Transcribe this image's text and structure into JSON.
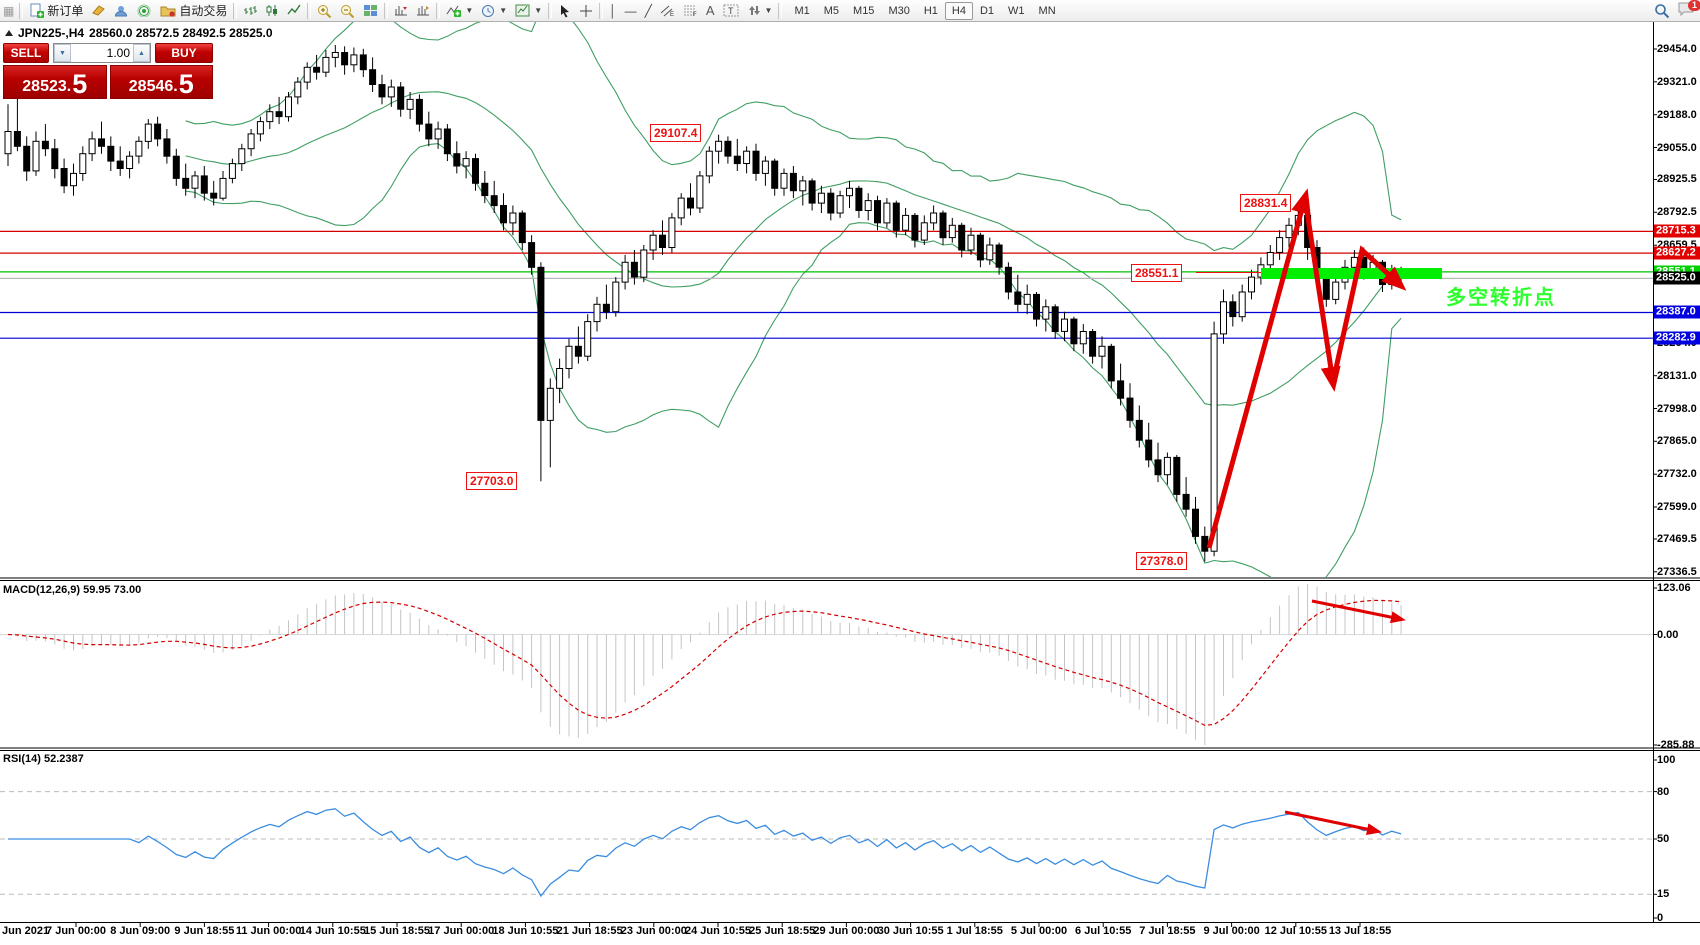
{
  "toolbar": {
    "new_order_label": "新订单",
    "autotrade_label": "自动交易",
    "timeframes": [
      "M1",
      "M5",
      "M15",
      "M30",
      "H1",
      "H4",
      "D1",
      "W1",
      "MN"
    ],
    "active_timeframe": "H4",
    "notification_count": "1"
  },
  "chart": {
    "symbol_tf": "JPN225-,H4",
    "ohlc_line": "28560.0 28572.5 28492.5 28525.0"
  },
  "trade_panel": {
    "sell_label": "SELL",
    "buy_label": "BUY",
    "volume": "1.00",
    "sell_price_main": "28523.",
    "sell_price_big": "5",
    "buy_price_main": "28546.",
    "buy_price_big": "5"
  },
  "indicators": {
    "macd_label": "MACD(12,26,9) 59.95 73.00",
    "rsi_label": "RSI(14) 52.2387"
  },
  "turning_point_text": "多空转折点",
  "chart_data": {
    "type": "candlestick",
    "symbol": "JPN225-",
    "timeframe": "H4",
    "last_ohlc": [
      28560.0,
      28572.5,
      28492.5,
      28525.0
    ],
    "y_axis_ticks": [
      29454.0,
      29321.0,
      29188.0,
      29055.0,
      28925.5,
      28792.5,
      28659.5,
      28264.0,
      28131.0,
      27998.0,
      27865.0,
      27732.0,
      27599.0,
      27469.5,
      27336.5
    ],
    "x_labels": [
      "Jun 2021",
      "7 Jun 00:00",
      "8 Jun 09:00",
      "9 Jun 18:55",
      "11 Jun 00:00",
      "14 Jun 10:55",
      "15 Jun 18:55",
      "17 Jun 00:00",
      "18 Jun 10:55",
      "21 Jun 18:55",
      "23 Jun 00:00",
      "24 Jun 10:55",
      "25 Jun 18:55",
      "29 Jun 00:00",
      "30 Jun 10:55",
      "1 Jul 18:55",
      "5 Jul 00:00",
      "6 Jul 10:55",
      "7 Jul 18:55",
      "9 Jul 00:00",
      "12 Jul 10:55",
      "13 Jul 18:55"
    ],
    "levels": [
      {
        "price": 28715.3,
        "line_color": "#d40000",
        "badge_bg": "#e00000",
        "label": "28715.3"
      },
      {
        "price": 28627.2,
        "line_color": "#d40000",
        "badge_bg": "#e00000",
        "label": "28627.2"
      },
      {
        "price": 28551.1,
        "line_color": "#00c000",
        "badge_bg": "#00d200",
        "label": "28551.1"
      },
      {
        "price": 28525.0,
        "line_color": "#b8b8b8",
        "badge_bg": "#000000",
        "label": "28525.0"
      },
      {
        "price": 28387.0,
        "line_color": "#0000d8",
        "badge_bg": "#0000e0",
        "label": "28387.0"
      },
      {
        "price": 28282.9,
        "line_color": "#0000d8",
        "badge_bg": "#0000e0",
        "label": "28282.9"
      }
    ],
    "annotations": [
      {
        "id": "a29107",
        "text": "29107.4",
        "price": 29107.4
      },
      {
        "id": "a28831",
        "text": "28831.4",
        "price": 28831.4
      },
      {
        "id": "a28551",
        "text": "28551.1",
        "price": 28551.1
      },
      {
        "id": "a27703",
        "text": "27703.0",
        "price": 27703.0
      },
      {
        "id": "a27378",
        "text": "27378.0",
        "price": 27378.0
      }
    ],
    "bollinger": {
      "period": 20,
      "deviation": 2,
      "color": "#3f9e63"
    },
    "macd": {
      "fast": 12,
      "slow": 26,
      "signal": 9,
      "axis_ticks": [
        "123.06",
        "0.00",
        "-285.88"
      ],
      "hist_color": "#c4c4c4",
      "signal_color": "#d40000"
    },
    "rsi": {
      "period": 14,
      "axis_ticks": [
        100,
        80,
        50,
        15,
        0
      ],
      "dashed_levels": [
        80,
        50,
        15
      ],
      "color": "#3b8de0"
    },
    "highlight_bar": {
      "price": 28551.1,
      "color": "#00ef00"
    },
    "candles": [
      [
        29030,
        29230,
        28980,
        29120
      ],
      [
        29120,
        29260,
        29040,
        29060
      ],
      [
        29060,
        29100,
        28920,
        28960
      ],
      [
        28960,
        29120,
        28940,
        29080
      ],
      [
        29080,
        29150,
        29020,
        29050
      ],
      [
        29050,
        29090,
        28930,
        28970
      ],
      [
        28970,
        29010,
        28870,
        28900
      ],
      [
        28900,
        28990,
        28860,
        28950
      ],
      [
        28950,
        29060,
        28920,
        29030
      ],
      [
        29030,
        29120,
        29000,
        29090
      ],
      [
        29090,
        29160,
        29030,
        29060
      ],
      [
        29060,
        29100,
        28960,
        29000
      ],
      [
        29000,
        29060,
        28940,
        28970
      ],
      [
        28970,
        29040,
        28930,
        29020
      ],
      [
        29020,
        29100,
        28990,
        29080
      ],
      [
        29080,
        29170,
        29050,
        29150
      ],
      [
        29150,
        29180,
        29060,
        29090
      ],
      [
        29090,
        29130,
        28990,
        29020
      ],
      [
        29020,
        29050,
        28900,
        28930
      ],
      [
        28930,
        28990,
        28860,
        28890
      ],
      [
        28890,
        28960,
        28850,
        28940
      ],
      [
        28940,
        28980,
        28840,
        28870
      ],
      [
        28870,
        28920,
        28820,
        28850
      ],
      [
        28850,
        28960,
        28840,
        28930
      ],
      [
        28930,
        29010,
        28910,
        28990
      ],
      [
        28990,
        29070,
        28960,
        29050
      ],
      [
        29050,
        29130,
        29020,
        29110
      ],
      [
        29110,
        29180,
        29080,
        29160
      ],
      [
        29160,
        29230,
        29130,
        29200
      ],
      [
        29200,
        29260,
        29150,
        29180
      ],
      [
        29180,
        29280,
        29160,
        29260
      ],
      [
        29260,
        29340,
        29230,
        29320
      ],
      [
        29320,
        29400,
        29290,
        29380
      ],
      [
        29380,
        29430,
        29330,
        29360
      ],
      [
        29360,
        29450,
        29340,
        29420
      ],
      [
        29420,
        29470,
        29380,
        29440
      ],
      [
        29440,
        29465,
        29350,
        29390
      ],
      [
        29390,
        29460,
        29360,
        29430
      ],
      [
        29430,
        29455,
        29340,
        29370
      ],
      [
        29370,
        29420,
        29280,
        29310
      ],
      [
        29310,
        29350,
        29230,
        29260
      ],
      [
        29260,
        29330,
        29220,
        29300
      ],
      [
        29300,
        29320,
        29180,
        29210
      ],
      [
        29210,
        29280,
        29170,
        29250
      ],
      [
        29250,
        29270,
        29120,
        29150
      ],
      [
        29150,
        29200,
        29060,
        29090
      ],
      [
        29090,
        29160,
        29050,
        29130
      ],
      [
        29130,
        29150,
        29000,
        29030
      ],
      [
        29030,
        29080,
        28950,
        28980
      ],
      [
        28980,
        29040,
        28930,
        29010
      ],
      [
        29010,
        29030,
        28880,
        28910
      ],
      [
        28910,
        28960,
        28830,
        28860
      ],
      [
        28860,
        28920,
        28790,
        28820
      ],
      [
        28820,
        28870,
        28720,
        28750
      ],
      [
        28750,
        28820,
        28700,
        28790
      ],
      [
        28790,
        28800,
        28640,
        28670
      ],
      [
        28670,
        28700,
        28540,
        28570
      ],
      [
        28570,
        28590,
        27703,
        27950
      ],
      [
        27950,
        28120,
        27760,
        28080
      ],
      [
        28080,
        28200,
        28020,
        28160
      ],
      [
        28160,
        28280,
        28120,
        28250
      ],
      [
        28250,
        28330,
        28180,
        28210
      ],
      [
        28210,
        28380,
        28190,
        28350
      ],
      [
        28350,
        28450,
        28310,
        28420
      ],
      [
        28420,
        28500,
        28360,
        28390
      ],
      [
        28390,
        28530,
        28370,
        28510
      ],
      [
        28510,
        28620,
        28480,
        28590
      ],
      [
        28590,
        28640,
        28500,
        28530
      ],
      [
        28530,
        28660,
        28510,
        28640
      ],
      [
        28640,
        28720,
        28600,
        28700
      ],
      [
        28700,
        28760,
        28620,
        28650
      ],
      [
        28650,
        28790,
        28630,
        28770
      ],
      [
        28770,
        28870,
        28740,
        28850
      ],
      [
        28850,
        28910,
        28780,
        28810
      ],
      [
        28810,
        28960,
        28790,
        28940
      ],
      [
        28940,
        29060,
        28910,
        29040
      ],
      [
        29040,
        29107.4,
        28990,
        29080
      ],
      [
        29080,
        29100,
        28990,
        29020
      ],
      [
        29020,
        29090,
        28960,
        28990
      ],
      [
        28990,
        29060,
        28950,
        29040
      ],
      [
        29040,
        29070,
        28920,
        28950
      ],
      [
        28950,
        29020,
        28900,
        29000
      ],
      [
        29000,
        29010,
        28860,
        28890
      ],
      [
        28890,
        28970,
        28860,
        28950
      ],
      [
        28950,
        28980,
        28850,
        28880
      ],
      [
        28880,
        28940,
        28820,
        28920
      ],
      [
        28920,
        28930,
        28800,
        28830
      ],
      [
        28830,
        28900,
        28790,
        28870
      ],
      [
        28870,
        28890,
        28760,
        28790
      ],
      [
        28790,
        28880,
        28770,
        28860
      ],
      [
        28860,
        28920,
        28810,
        28890
      ],
      [
        28890,
        28900,
        28770,
        28800
      ],
      [
        28800,
        28870,
        28760,
        28840
      ],
      [
        28840,
        28860,
        28720,
        28750
      ],
      [
        28750,
        28850,
        28730,
        28830
      ],
      [
        28830,
        28840,
        28690,
        28720
      ],
      [
        28720,
        28810,
        28700,
        28780
      ],
      [
        28780,
        28790,
        28650,
        28680
      ],
      [
        28680,
        28780,
        28660,
        28750
      ],
      [
        28750,
        28820,
        28720,
        28790
      ],
      [
        28790,
        28800,
        28660,
        28690
      ],
      [
        28690,
        28770,
        28670,
        28740
      ],
      [
        28740,
        28750,
        28610,
        28640
      ],
      [
        28640,
        28730,
        28620,
        28700
      ],
      [
        28700,
        28710,
        28570,
        28600
      ],
      [
        28600,
        28690,
        28580,
        28660
      ],
      [
        28660,
        28670,
        28540,
        28570
      ],
      [
        28570,
        28590,
        28440,
        28470
      ],
      [
        28470,
        28540,
        28390,
        28420
      ],
      [
        28420,
        28500,
        28380,
        28460
      ],
      [
        28460,
        28470,
        28330,
        28360
      ],
      [
        28360,
        28440,
        28310,
        28410
      ],
      [
        28410,
        28420,
        28280,
        28310
      ],
      [
        28310,
        28390,
        28270,
        28360
      ],
      [
        28360,
        28370,
        28230,
        28260
      ],
      [
        28260,
        28340,
        28220,
        28310
      ],
      [
        28310,
        28320,
        28180,
        28210
      ],
      [
        28210,
        28290,
        28160,
        28250
      ],
      [
        28250,
        28260,
        28080,
        28110
      ],
      [
        28110,
        28180,
        28010,
        28040
      ],
      [
        28040,
        28100,
        27920,
        27950
      ],
      [
        27950,
        28010,
        27840,
        27870
      ],
      [
        27870,
        27940,
        27760,
        27790
      ],
      [
        27790,
        27860,
        27700,
        27730
      ],
      [
        27730,
        27820,
        27690,
        27800
      ],
      [
        27800,
        27810,
        27620,
        27650
      ],
      [
        27650,
        27720,
        27560,
        27590
      ],
      [
        27590,
        27640,
        27450,
        27480
      ],
      [
        27480,
        27520,
        27378,
        27420
      ],
      [
        27420,
        28350,
        27400,
        28300
      ],
      [
        28300,
        28480,
        28260,
        28430
      ],
      [
        28430,
        28460,
        28330,
        28370
      ],
      [
        28370,
        28500,
        28350,
        28470
      ],
      [
        28470,
        28560,
        28440,
        28530
      ],
      [
        28530,
        28610,
        28500,
        28580
      ],
      [
        28580,
        28660,
        28550,
        28630
      ],
      [
        28630,
        28720,
        28600,
        28690
      ],
      [
        28690,
        28770,
        28650,
        28740
      ],
      [
        28740,
        28810,
        28700,
        28780
      ],
      [
        28780,
        28831.4,
        28600,
        28650
      ],
      [
        28650,
        28680,
        28500,
        28530
      ],
      [
        28530,
        28560,
        28410,
        28440
      ],
      [
        28440,
        28540,
        28420,
        28510
      ],
      [
        28510,
        28600,
        28480,
        28570
      ],
      [
        28570,
        28640,
        28540,
        28610
      ],
      [
        28610,
        28650,
        28520,
        28550
      ],
      [
        28550,
        28620,
        28530,
        28590
      ],
      [
        28590,
        28600,
        28470,
        28500
      ],
      [
        28500,
        28580,
        28480,
        28560
      ],
      [
        28560,
        28572.5,
        28492.5,
        28525
      ]
    ]
  }
}
